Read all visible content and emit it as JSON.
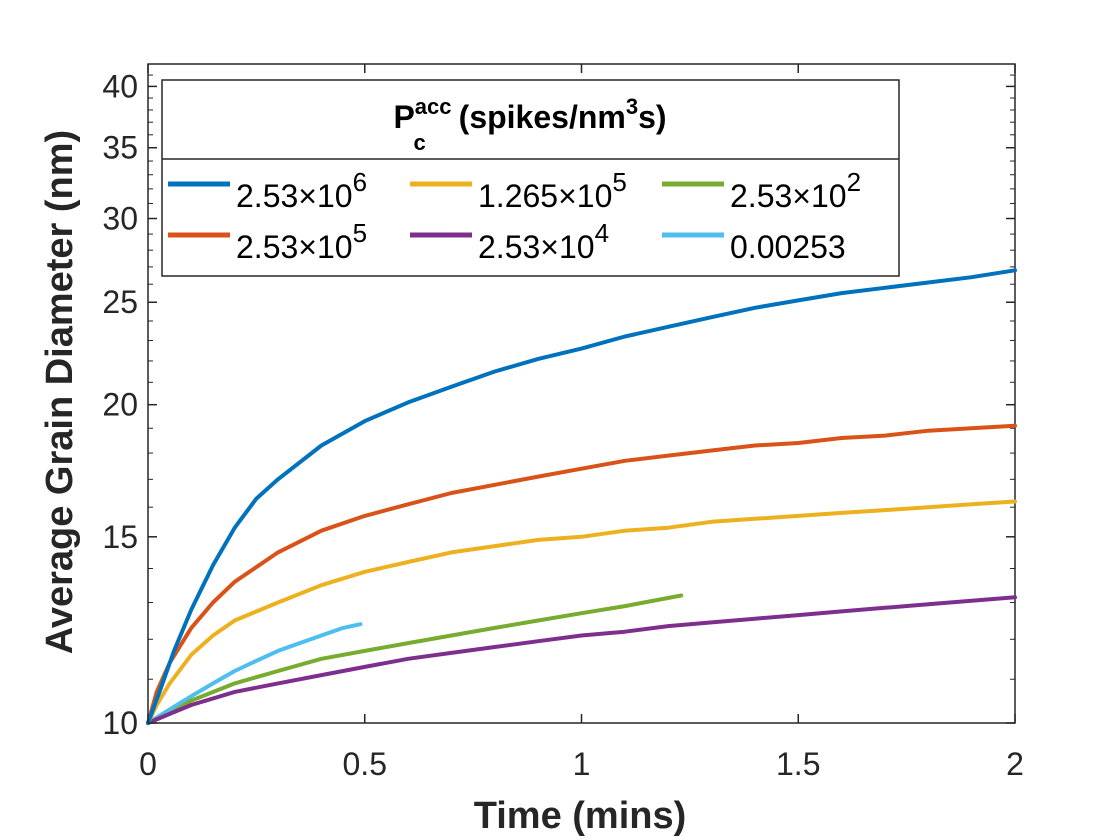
{
  "chart_data": {
    "type": "line",
    "title": "",
    "xlabel": "Time (mins)",
    "ylabel": "Average Grain Diameter (nm)",
    "yscale": "log",
    "xlim": [
      0,
      2
    ],
    "ylim": [
      10,
      42
    ],
    "x_ticks": [
      0,
      0.5,
      1,
      1.5,
      2
    ],
    "x_tick_labels": [
      "0",
      "0.5",
      "1",
      "1.5",
      "2"
    ],
    "y_ticks": [
      10,
      15,
      20,
      25,
      30,
      35,
      40
    ],
    "y_tick_labels": [
      "10",
      "15",
      "20",
      "25",
      "30",
      "35",
      "40"
    ],
    "legend": {
      "title_main": "P",
      "title_sub": "c",
      "title_sup": "acc",
      "title_rest": " (spikes/nm",
      "title_rest_sup": "3",
      "title_end": "s)",
      "placement": "top-left"
    },
    "series": [
      {
        "name": "2.53×10^6",
        "label_base": "2.53×10",
        "label_exp": "6",
        "color": "#0072BD",
        "x": [
          0,
          0.03,
          0.06,
          0.1,
          0.15,
          0.2,
          0.25,
          0.3,
          0.4,
          0.5,
          0.6,
          0.7,
          0.8,
          0.9,
          1.0,
          1.1,
          1.2,
          1.3,
          1.4,
          1.5,
          1.6,
          1.7,
          1.8,
          1.9,
          2.0
        ],
        "y": [
          10.0,
          10.8,
          11.7,
          12.8,
          14.1,
          15.3,
          16.3,
          17.0,
          18.3,
          19.3,
          20.1,
          20.8,
          21.5,
          22.1,
          22.6,
          23.2,
          23.7,
          24.2,
          24.7,
          25.1,
          25.5,
          25.8,
          26.1,
          26.4,
          26.8
        ]
      },
      {
        "name": "2.53×10^5",
        "label_base": "2.53×10",
        "label_exp": "5",
        "color": "#D95319",
        "x": [
          0,
          0.02,
          0.05,
          0.1,
          0.15,
          0.2,
          0.3,
          0.4,
          0.5,
          0.6,
          0.7,
          0.8,
          0.9,
          1.0,
          1.1,
          1.2,
          1.3,
          1.4,
          1.5,
          1.6,
          1.7,
          1.8,
          1.9,
          2.0
        ],
        "y": [
          10.0,
          10.7,
          11.4,
          12.3,
          13.0,
          13.6,
          14.5,
          15.2,
          15.7,
          16.1,
          16.5,
          16.8,
          17.1,
          17.4,
          17.7,
          17.9,
          18.1,
          18.3,
          18.4,
          18.6,
          18.7,
          18.9,
          19.0,
          19.1
        ]
      },
      {
        "name": "1.265×10^5",
        "label_base": "1.265×10",
        "label_exp": "5",
        "color": "#EDB120",
        "x": [
          0,
          0.02,
          0.05,
          0.1,
          0.15,
          0.2,
          0.3,
          0.4,
          0.5,
          0.6,
          0.7,
          0.8,
          0.9,
          1.0,
          1.1,
          1.2,
          1.3,
          1.4,
          1.5,
          1.6,
          1.7,
          1.8,
          1.9,
          2.0
        ],
        "y": [
          10.0,
          10.4,
          10.9,
          11.6,
          12.1,
          12.5,
          13.0,
          13.5,
          13.9,
          14.2,
          14.5,
          14.7,
          14.9,
          15.0,
          15.2,
          15.3,
          15.5,
          15.6,
          15.7,
          15.8,
          15.9,
          16.0,
          16.1,
          16.2
        ]
      },
      {
        "name": "2.53×10^4",
        "label_base": "2.53×10",
        "label_exp": "4",
        "color": "#7E2F8E",
        "x": [
          0,
          0.05,
          0.1,
          0.2,
          0.3,
          0.4,
          0.5,
          0.6,
          0.7,
          0.8,
          0.9,
          1.0,
          1.1,
          1.2,
          1.3,
          1.4,
          1.5,
          1.6,
          1.7,
          1.8,
          1.9,
          2.0
        ],
        "y": [
          10.0,
          10.2,
          10.4,
          10.7,
          10.9,
          11.1,
          11.3,
          11.5,
          11.65,
          11.8,
          11.95,
          12.1,
          12.2,
          12.35,
          12.45,
          12.55,
          12.65,
          12.75,
          12.85,
          12.95,
          13.05,
          13.15
        ]
      },
      {
        "name": "2.53×10^2",
        "label_base": "2.53×10",
        "label_exp": "2",
        "color": "#77AC30",
        "x": [
          0,
          0.05,
          0.1,
          0.2,
          0.3,
          0.4,
          0.5,
          0.6,
          0.7,
          0.8,
          0.9,
          1.0,
          1.1,
          1.23
        ],
        "y": [
          10.0,
          10.2,
          10.5,
          10.9,
          11.2,
          11.5,
          11.7,
          11.9,
          12.1,
          12.3,
          12.5,
          12.7,
          12.9,
          13.2
        ]
      },
      {
        "name": "0.00253",
        "label_base": "0.00253",
        "label_exp": "",
        "color": "#4DBEEE",
        "x": [
          0,
          0.05,
          0.1,
          0.15,
          0.2,
          0.25,
          0.3,
          0.35,
          0.4,
          0.45,
          0.49
        ],
        "y": [
          10.0,
          10.3,
          10.6,
          10.9,
          11.2,
          11.45,
          11.7,
          11.9,
          12.1,
          12.3,
          12.4
        ]
      }
    ]
  }
}
